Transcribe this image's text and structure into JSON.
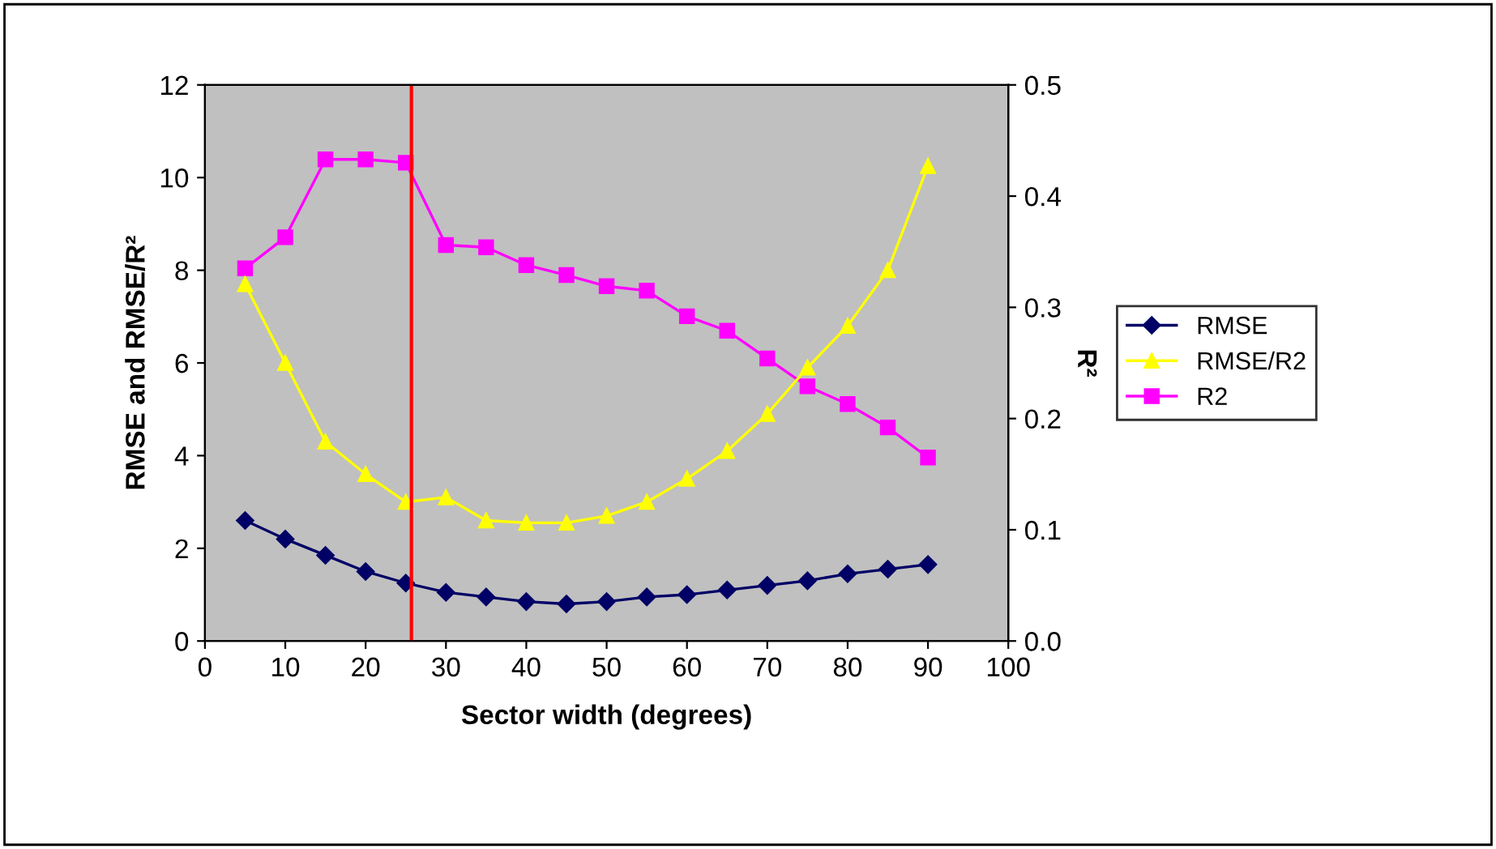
{
  "chart_data": {
    "type": "line",
    "xlabel": "Sector width (degrees)",
    "ylabel": "RMSE and RMSE/R²",
    "y2label": "R²",
    "x": [
      5,
      10,
      15,
      20,
      25,
      30,
      35,
      40,
      45,
      50,
      55,
      60,
      65,
      70,
      75,
      80,
      85,
      90
    ],
    "xlim": [
      0,
      100
    ],
    "xticks": [
      0,
      10,
      20,
      30,
      40,
      50,
      60,
      70,
      80,
      90,
      100
    ],
    "ylim": [
      0,
      12
    ],
    "yticks": [
      0,
      2,
      4,
      6,
      8,
      10,
      12
    ],
    "y2lim": [
      0,
      0.5
    ],
    "y2ticks": [
      {
        "value": 0,
        "label": "0.0"
      },
      0.1,
      0.2,
      0.3,
      0.4,
      0.5
    ],
    "series": [
      {
        "name": "RMSE",
        "color": "#000066",
        "marker": "diamond",
        "values": [
          2.6,
          2.2,
          1.85,
          1.5,
          1.25,
          1.05,
          0.95,
          0.85,
          0.8,
          0.85,
          0.95,
          1.0,
          1.1,
          1.2,
          1.3,
          1.45,
          1.55,
          1.65
        ]
      },
      {
        "name": "RMSE/R2",
        "color": "#ffff00",
        "marker": "triangle",
        "values": [
          7.7,
          6.0,
          4.3,
          3.6,
          3.0,
          3.1,
          2.6,
          2.55,
          2.55,
          2.7,
          3.0,
          3.5,
          4.1,
          4.9,
          5.9,
          6.8,
          8.0,
          10.25
        ]
      },
      {
        "name": "R2",
        "color": "#ff00ff",
        "marker": "square",
        "axis": "y2",
        "values": [
          0.335,
          0.363,
          0.433,
          0.433,
          0.43,
          0.356,
          0.354,
          0.338,
          0.329,
          0.319,
          0.315,
          0.292,
          0.279,
          0.254,
          0.229,
          0.213,
          0.192,
          0.165
        ]
      }
    ],
    "ref_lines": [
      {
        "axis": "x",
        "value": 25.7,
        "color": "#ff0000"
      }
    ],
    "grid": false,
    "legend": "right"
  }
}
